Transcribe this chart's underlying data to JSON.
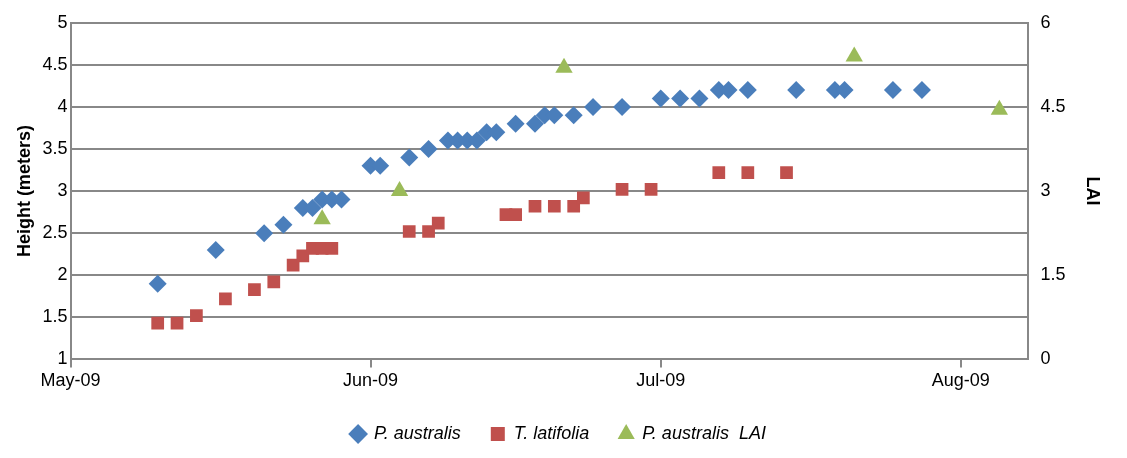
{
  "chart_data": {
    "type": "scatter",
    "ylabel": "Height (meters)",
    "y2label": "LAI",
    "xlim": [
      "2009-05-01",
      "2009-08-08"
    ],
    "xticks": [
      {
        "value": "2009-05-01",
        "label": "May-09"
      },
      {
        "value": "2009-06-01",
        "label": "Jun-09"
      },
      {
        "value": "2009-07-01",
        "label": "Jul-09"
      },
      {
        "value": "2009-08-01",
        "label": "Aug-09"
      }
    ],
    "ylim": [
      1,
      5
    ],
    "yticks": [
      1,
      1.5,
      2,
      2.5,
      3,
      3.5,
      4,
      4.5,
      5
    ],
    "y2lim": [
      0,
      6
    ],
    "y2ticks": [
      0,
      1.5,
      3,
      4.5,
      6
    ],
    "grid": "y",
    "legend": "bottom",
    "series": [
      {
        "name": "P. australis",
        "color": "#4a7ebb",
        "marker": "diamond",
        "x": [
          "2009-05-10",
          "2009-05-16",
          "2009-05-21",
          "2009-05-23",
          "2009-05-25",
          "2009-05-26",
          "2009-05-27",
          "2009-05-28",
          "2009-05-29",
          "2009-06-01",
          "2009-06-02",
          "2009-06-05",
          "2009-06-07",
          "2009-06-09",
          "2009-06-10",
          "2009-06-11",
          "2009-06-12",
          "2009-06-13",
          "2009-06-14",
          "2009-06-16",
          "2009-06-18",
          "2009-06-19",
          "2009-06-20",
          "2009-06-22",
          "2009-06-24",
          "2009-06-27",
          "2009-07-01",
          "2009-07-03",
          "2009-07-05",
          "2009-07-07",
          "2009-07-08",
          "2009-07-10",
          "2009-07-15",
          "2009-07-19",
          "2009-07-20",
          "2009-07-25",
          "2009-07-28"
        ],
        "values": [
          1.9,
          2.3,
          2.5,
          2.6,
          2.8,
          2.8,
          2.9,
          2.9,
          2.9,
          3.3,
          3.3,
          3.4,
          3.5,
          3.6,
          3.6,
          3.6,
          3.6,
          3.7,
          3.7,
          3.8,
          3.8,
          3.9,
          3.9,
          3.9,
          4.0,
          4.0,
          4.1,
          4.1,
          4.1,
          4.2,
          4.2,
          4.2,
          4.2,
          4.2,
          4.2,
          4.2,
          4.2
        ]
      },
      {
        "name": "T. latifolia",
        "color": "#c0504d",
        "marker": "square",
        "x": [
          "2009-05-10",
          "2009-05-12",
          "2009-05-14",
          "2009-05-17",
          "2009-05-20",
          "2009-05-22",
          "2009-05-24",
          "2009-05-25",
          "2009-05-26",
          "2009-05-27",
          "2009-05-28",
          "2009-06-05",
          "2009-06-07",
          "2009-06-08",
          "2009-06-15",
          "2009-06-16",
          "2009-06-18",
          "2009-06-20",
          "2009-06-22",
          "2009-06-23",
          "2009-06-27",
          "2009-06-30",
          "2009-07-07",
          "2009-07-10",
          "2009-07-14"
        ],
        "values": [
          1.43,
          1.43,
          1.52,
          1.72,
          1.83,
          1.92,
          2.12,
          2.23,
          2.32,
          2.32,
          2.32,
          2.52,
          2.52,
          2.62,
          2.72,
          2.72,
          2.82,
          2.82,
          2.82,
          2.92,
          3.02,
          3.02,
          3.22,
          3.22,
          3.22
        ]
      },
      {
        "name": "P. australis  LAI",
        "color": "#9bbb59",
        "marker": "triangle",
        "axis": "y2",
        "x": [
          "2009-05-27",
          "2009-06-04",
          "2009-06-21",
          "2009-07-21",
          "2009-08-05"
        ],
        "values": [
          2.5,
          3.0,
          5.2,
          5.4,
          4.45
        ]
      }
    ]
  }
}
